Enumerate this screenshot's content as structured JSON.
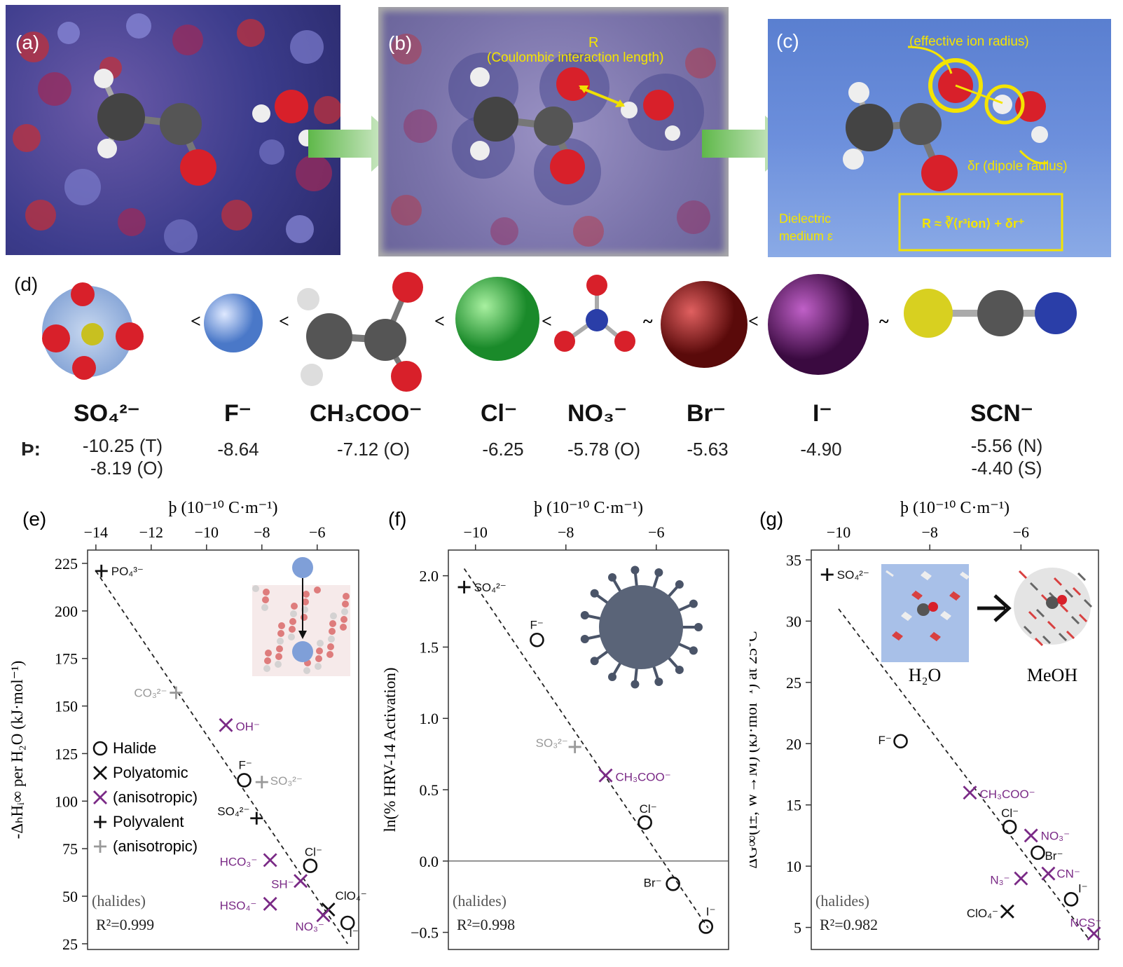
{
  "panels": {
    "a": {
      "label": "(a)"
    },
    "b": {
      "label": "(b)",
      "annotation_r": "R",
      "annotation_text": "(Coulombic interaction length)"
    },
    "c": {
      "label": "(c)",
      "annotation_radius": "(effective  ion radius)",
      "annotation_dipole": "δr (dipole radius)",
      "medium_line1": "Dielectric",
      "medium_line2": "medium ε",
      "formula": "R ≈ ∛⟨r³ion⟩ + δr⁺"
    },
    "d": {
      "label": "(d)"
    }
  },
  "ion_series": {
    "beta_symbol": "Ϸ:",
    "ions": [
      {
        "name": "SO₄²⁻",
        "beta": [
          "-10.25 (T)",
          "-8.19 (O)"
        ]
      },
      {
        "name": "F⁻",
        "beta": [
          "-8.64"
        ]
      },
      {
        "name": "CH₃COO⁻",
        "beta": [
          "-7.12 (O)"
        ]
      },
      {
        "name": "Cl⁻",
        "beta": [
          "-6.25"
        ]
      },
      {
        "name": "NO₃⁻",
        "beta": [
          "-5.78 (O)"
        ]
      },
      {
        "name": "Br⁻",
        "beta": [
          "-5.63"
        ]
      },
      {
        "name": "I⁻",
        "beta": [
          "-4.90"
        ]
      },
      {
        "name": "SCN⁻",
        "beta": [
          "-5.56 (N)",
          "-4.40 (S)"
        ]
      }
    ],
    "comparators": [
      "<",
      "<",
      "<",
      "<",
      "~",
      "<",
      "~"
    ]
  },
  "chart_data": [
    {
      "panel": "(e)",
      "type": "scatter",
      "xlabel": "ϸ (10⁻¹⁰ C·m⁻¹)",
      "ylabel": "-ΔₕHᵢ∞ per H₂O (kJ·mol⁻¹)",
      "x_ticks": [
        -14,
        -12,
        -10,
        -8,
        -6
      ],
      "y_ticks": [
        25,
        50,
        75,
        100,
        125,
        150,
        175,
        200,
        225
      ],
      "xlim": [
        -14.3,
        -4.5
      ],
      "ylim": [
        22,
        232
      ],
      "fit_line": [
        [
          -14.0,
          221
        ],
        [
          -4.9,
          25
        ]
      ],
      "points": [
        {
          "label": "PO₄³⁻",
          "x": -13.8,
          "y": 221,
          "marker": "plus",
          "color": "#111111"
        },
        {
          "label": "CO₃²⁻",
          "x": -11.1,
          "y": 157,
          "marker": "plus",
          "color": "#999999"
        },
        {
          "label": "OH⁻",
          "x": -9.3,
          "y": 140,
          "marker": "x",
          "color": "#7a2a86"
        },
        {
          "label": "F⁻",
          "x": -8.64,
          "y": 111,
          "marker": "circle",
          "color": "#111111"
        },
        {
          "label": "SO₃²⁻",
          "x": -8.0,
          "y": 110,
          "marker": "plus",
          "color": "#999999"
        },
        {
          "label": "SO₄²⁻",
          "x": -8.19,
          "y": 91,
          "marker": "plus",
          "color": "#111111"
        },
        {
          "label": "HCO₃⁻",
          "x": -7.7,
          "y": 69,
          "marker": "x",
          "color": "#7a2a86"
        },
        {
          "label": "Cl⁻",
          "x": -6.25,
          "y": 66,
          "marker": "circle",
          "color": "#111111"
        },
        {
          "label": "SH⁻",
          "x": -6.6,
          "y": 58,
          "marker": "x",
          "color": "#7a2a86"
        },
        {
          "label": "HSO₄⁻",
          "x": -7.7,
          "y": 46,
          "marker": "x",
          "color": "#7a2a86"
        },
        {
          "label": "ClO₄⁻",
          "x": -5.6,
          "y": 43,
          "marker": "x",
          "color": "#111111"
        },
        {
          "label": "NO₃⁻",
          "x": -5.78,
          "y": 40,
          "marker": "x",
          "color": "#7a2a86"
        },
        {
          "label": "I⁻",
          "x": -4.9,
          "y": 36,
          "marker": "circle",
          "color": "#111111"
        }
      ],
      "legend": [
        "Halide",
        "Polyatomic",
        "(anisotropic)",
        "Polyvalent",
        "(anisotropic)"
      ],
      "note_halides": "(halides)",
      "r2": "R²=0.999"
    },
    {
      "panel": "(f)",
      "type": "scatter",
      "xlabel": "ϸ (10⁻¹⁰ C·m⁻¹)",
      "ylabel": "ln(% HRV-14 Activation)",
      "x_ticks": [
        -10,
        -8,
        -6
      ],
      "y_ticks": [
        -0.5,
        0.0,
        0.5,
        1.0,
        1.5,
        2.0
      ],
      "xlim": [
        -10.6,
        -4.4
      ],
      "ylim": [
        -0.62,
        2.18
      ],
      "fit_line": [
        [
          -10.25,
          2.05
        ],
        [
          -4.85,
          -0.47
        ]
      ],
      "zero_line": 0.0,
      "points": [
        {
          "label": "SO₄²⁻",
          "x": -10.25,
          "y": 1.92,
          "marker": "plus",
          "color": "#111111"
        },
        {
          "label": "F⁻",
          "x": -8.64,
          "y": 1.55,
          "marker": "circle",
          "color": "#111111"
        },
        {
          "label": "SO₃²⁻",
          "x": -7.8,
          "y": 0.8,
          "marker": "plus",
          "color": "#999999"
        },
        {
          "label": "CH₃COO⁻",
          "x": -7.12,
          "y": 0.6,
          "marker": "x",
          "color": "#7a2a86"
        },
        {
          "label": "Cl⁻",
          "x": -6.25,
          "y": 0.27,
          "marker": "circle",
          "color": "#111111"
        },
        {
          "label": "Br⁻",
          "x": -5.63,
          "y": -0.16,
          "marker": "circle",
          "color": "#111111"
        },
        {
          "label": "I⁻",
          "x": -4.9,
          "y": -0.46,
          "marker": "circle",
          "color": "#111111"
        }
      ],
      "note_halides": "(halides)",
      "r2": "R²=0.998"
    },
    {
      "panel": "(g)",
      "type": "scatter",
      "xlabel": "ϸ (10⁻¹⁰ C·m⁻¹)",
      "ylabel": "ΔG∞(I±, W→M) (kJ·mol⁻¹) at 25°C",
      "x_ticks": [
        -10,
        -8,
        -6
      ],
      "y_ticks": [
        5,
        10,
        15,
        20,
        25,
        30,
        35
      ],
      "xlim": [
        -10.6,
        -4.3
      ],
      "ylim": [
        3.2,
        35.8
      ],
      "fit_line": [
        [
          -10.0,
          31
        ],
        [
          -4.5,
          4
        ]
      ],
      "points": [
        {
          "label": "SO₄²⁻",
          "x": -10.25,
          "y": 33.8,
          "marker": "plus",
          "color": "#111111"
        },
        {
          "label": "F⁻",
          "x": -8.64,
          "y": 20.2,
          "marker": "circle",
          "color": "#111111"
        },
        {
          "label": "CH₃COO⁻",
          "x": -7.12,
          "y": 16.0,
          "marker": "x",
          "color": "#7a2a86"
        },
        {
          "label": "Cl⁻",
          "x": -6.25,
          "y": 13.2,
          "marker": "circle",
          "color": "#111111"
        },
        {
          "label": "NO₃⁻",
          "x": -5.78,
          "y": 12.5,
          "marker": "x",
          "color": "#7a2a86"
        },
        {
          "label": "Br⁻",
          "x": -5.63,
          "y": 11.1,
          "marker": "circle",
          "color": "#111111"
        },
        {
          "label": "N₃⁻",
          "x": -6.0,
          "y": 9.0,
          "marker": "x",
          "color": "#7a2a86"
        },
        {
          "label": "CN⁻",
          "x": -5.4,
          "y": 9.4,
          "marker": "x",
          "color": "#7a2a86"
        },
        {
          "label": "I⁻",
          "x": -4.9,
          "y": 7.3,
          "marker": "circle",
          "color": "#111111"
        },
        {
          "label": "ClO₄⁻",
          "x": -6.3,
          "y": 6.3,
          "marker": "x",
          "color": "#111111"
        },
        {
          "label": "NCS⁻",
          "x": -4.4,
          "y": 4.5,
          "marker": "x",
          "color": "#7a2a86"
        }
      ],
      "inset_labels": [
        "H₂O",
        "MeOH"
      ],
      "note_halides": "(halides)",
      "r2": "R²=0.982"
    }
  ]
}
